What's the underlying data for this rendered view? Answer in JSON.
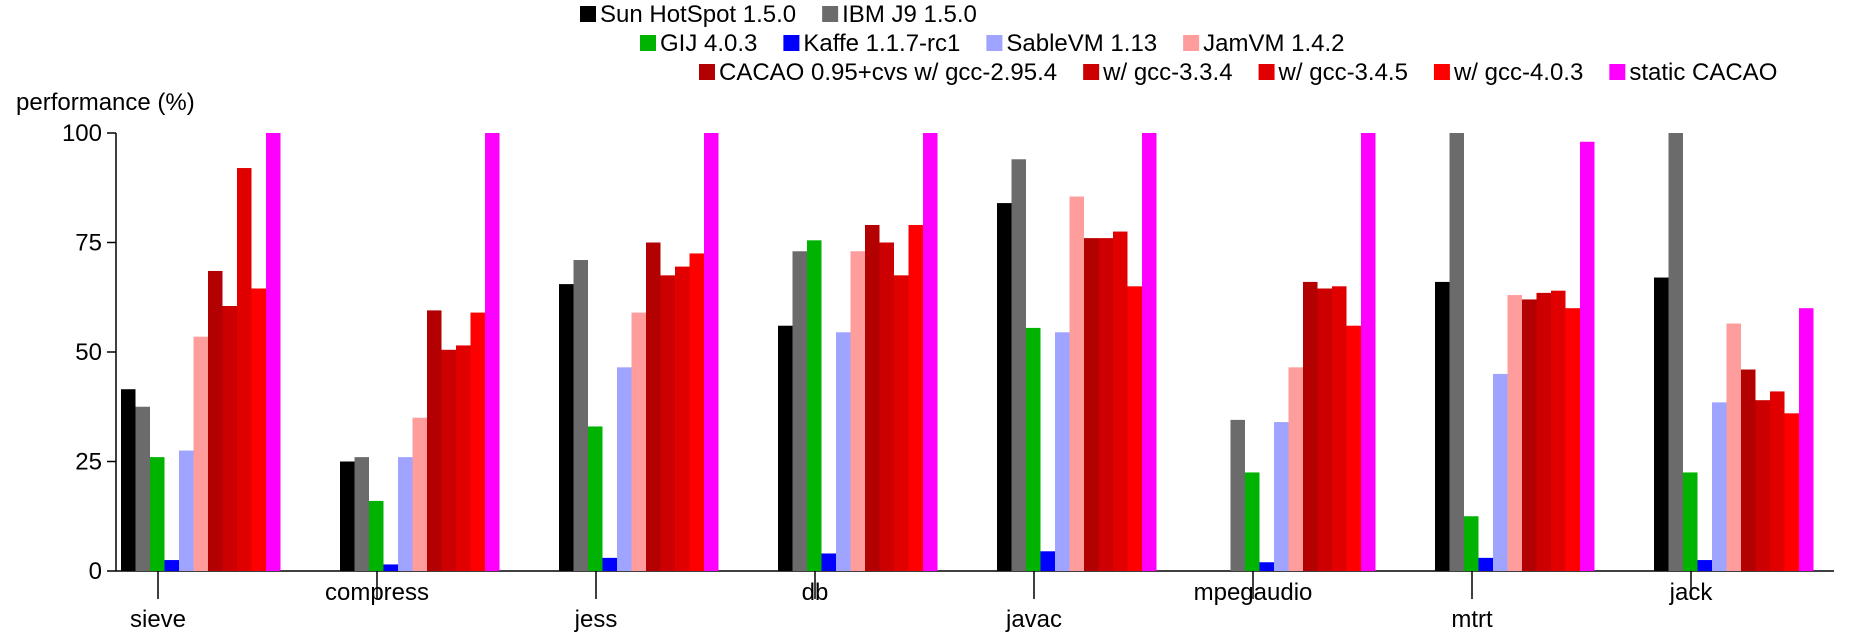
{
  "chart_data": {
    "type": "bar",
    "ylabel": "performance (%)",
    "ylim": [
      0,
      100
    ],
    "yticks": [
      0,
      25,
      50,
      75,
      100
    ],
    "grid": false,
    "legend_position": "top",
    "categories": [
      "sieve",
      "compress",
      "jess",
      "db",
      "javac",
      "mpegaudio",
      "mtrt",
      "jack"
    ],
    "series": [
      {
        "name": "Sun HotSpot 1.5.0",
        "color": "#000000",
        "values": [
          41.5,
          25,
          65.5,
          56,
          84,
          null,
          66,
          67
        ]
      },
      {
        "name": "IBM J9 1.5.0",
        "color": "#6b6b6b",
        "values": [
          37.5,
          26,
          71,
          73,
          94,
          34.5,
          100,
          100
        ]
      },
      {
        "name": "GIJ 4.0.3",
        "color": "#00b300",
        "values": [
          26,
          16,
          33,
          75.5,
          55.5,
          22.5,
          12.5,
          22.5
        ]
      },
      {
        "name": "Kaffe 1.1.7-rc1",
        "color": "#0000ff",
        "values": [
          2.5,
          1.5,
          3,
          4,
          4.5,
          2,
          3,
          2.5
        ]
      },
      {
        "name": "SableVM 1.13",
        "color": "#9ea4ff",
        "values": [
          27.5,
          26,
          46.5,
          54.5,
          54.5,
          34,
          45,
          38.5
        ]
      },
      {
        "name": "JamVM 1.4.2",
        "color": "#ff9d9d",
        "values": [
          53.5,
          35,
          59,
          73,
          85.5,
          46.5,
          63,
          56.5
        ]
      },
      {
        "name": "CACAO 0.95+cvs w/ gcc-2.95.4",
        "color": "#b30000",
        "values": [
          68.5,
          59.5,
          75,
          79,
          76,
          66,
          62,
          46
        ]
      },
      {
        "name": "w/ gcc-3.3.4",
        "color": "#cc0000",
        "values": [
          60.5,
          50.5,
          67.5,
          75,
          76,
          64.5,
          63.5,
          39
        ]
      },
      {
        "name": "w/ gcc-3.4.5",
        "color": "#e00000",
        "values": [
          92,
          51.5,
          69.5,
          67.5,
          77.5,
          65,
          64,
          41
        ]
      },
      {
        "name": "w/ gcc-4.0.3",
        "color": "#ff0000",
        "values": [
          64.5,
          59,
          72.5,
          79,
          65,
          56,
          60,
          36
        ]
      },
      {
        "name": "static CACAO",
        "color": "#ff00ff",
        "values": [
          100,
          100,
          100,
          100,
          100,
          100,
          98,
          60
        ]
      }
    ]
  }
}
